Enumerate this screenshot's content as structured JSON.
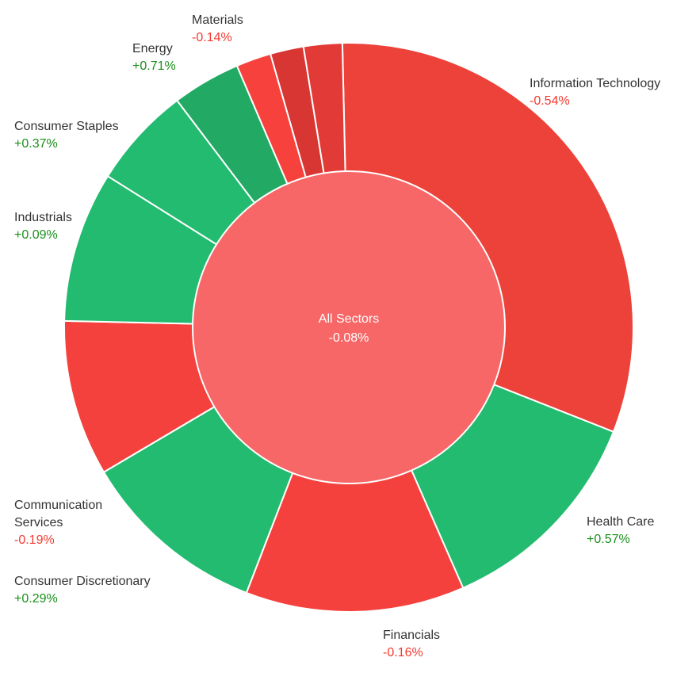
{
  "chart_data": {
    "type": "pie",
    "center": {
      "label": "All Sectors",
      "value_text": "-0.08%",
      "color": "#f76767"
    },
    "sectors": [
      {
        "name": "Information Technology",
        "weight": 31.5,
        "change_text": "-0.54%",
        "color": "#ec423a"
      },
      {
        "name": "Health Care",
        "weight": 12.5,
        "change_text": "+0.57%",
        "color": "#22bb6f"
      },
      {
        "name": "Financials",
        "weight": 12.5,
        "change_text": "-0.16%",
        "color": "#f4413d"
      },
      {
        "name": "Consumer Discretionary",
        "weight": 10.7,
        "change_text": "+0.29%",
        "color": "#22bb6f"
      },
      {
        "name": "Communication Services",
        "weight": 8.9,
        "change_text": "-0.19%",
        "color": "#f4413d"
      },
      {
        "name": "Industrials",
        "weight": 8.6,
        "change_text": "+0.09%",
        "color": "#22bb6f"
      },
      {
        "name": "Consumer Staples",
        "weight": 5.8,
        "change_text": "+0.37%",
        "color": "#22bb6f"
      },
      {
        "name": "Energy",
        "weight": 3.9,
        "change_text": "+0.71%",
        "color": "#22aa64"
      },
      {
        "name": "",
        "weight": 2.0,
        "change_text": "",
        "color": "#f7413d"
      },
      {
        "name": "",
        "weight": 1.9,
        "change_text": "",
        "color": "#d73633"
      },
      {
        "name": "Materials",
        "weight": 2.2,
        "change_text": "-0.14%",
        "color": "#e23a36"
      }
    ],
    "colors": {
      "positive_text": "#1a8f1a",
      "negative_text": "#f4392f",
      "separator": "#ffffff"
    }
  }
}
